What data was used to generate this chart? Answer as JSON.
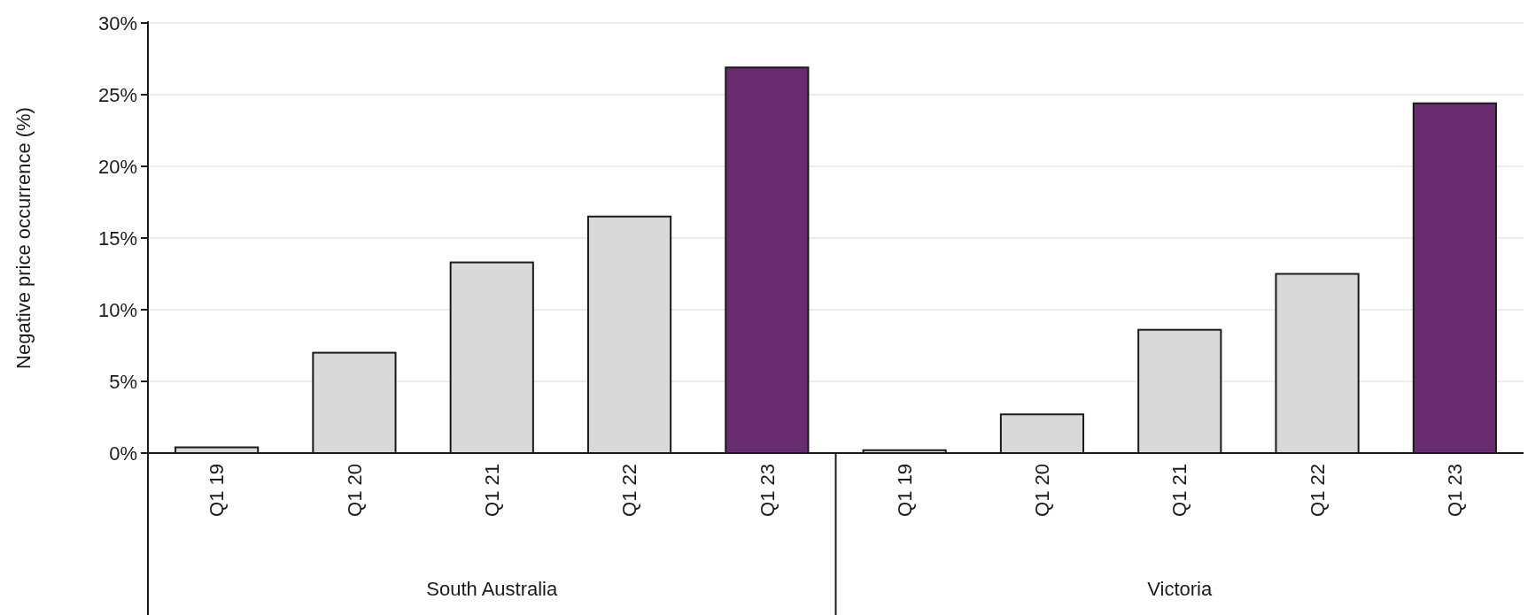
{
  "chart_data": {
    "type": "bar",
    "ylabel": "Negative price occurrence (%)",
    "categories": [
      "Q1 19",
      "Q1 20",
      "Q1 21",
      "Q1 22",
      "Q1 23",
      "Q1 19",
      "Q1 20",
      "Q1 21",
      "Q1 22",
      "Q1 23"
    ],
    "values": [
      0.4,
      7.0,
      13.3,
      16.5,
      26.9,
      0.2,
      2.7,
      8.6,
      12.5,
      24.4
    ],
    "colors": [
      "#d9d9d9",
      "#d9d9d9",
      "#d9d9d9",
      "#d9d9d9",
      "#6a2c70",
      "#d9d9d9",
      "#d9d9d9",
      "#d9d9d9",
      "#d9d9d9",
      "#6a2c70"
    ],
    "ylim": [
      0,
      30
    ],
    "yticks": [
      {
        "value": 0,
        "label": "0%"
      },
      {
        "value": 5,
        "label": "5%"
      },
      {
        "value": 10,
        "label": "10%"
      },
      {
        "value": 15,
        "label": "15%"
      },
      {
        "value": 20,
        "label": "20%"
      },
      {
        "value": 25,
        "label": "25%"
      },
      {
        "value": 30,
        "label": "30%"
      }
    ],
    "grid": "y",
    "annotations": [
      "South Australia",
      "Victoria"
    ]
  }
}
